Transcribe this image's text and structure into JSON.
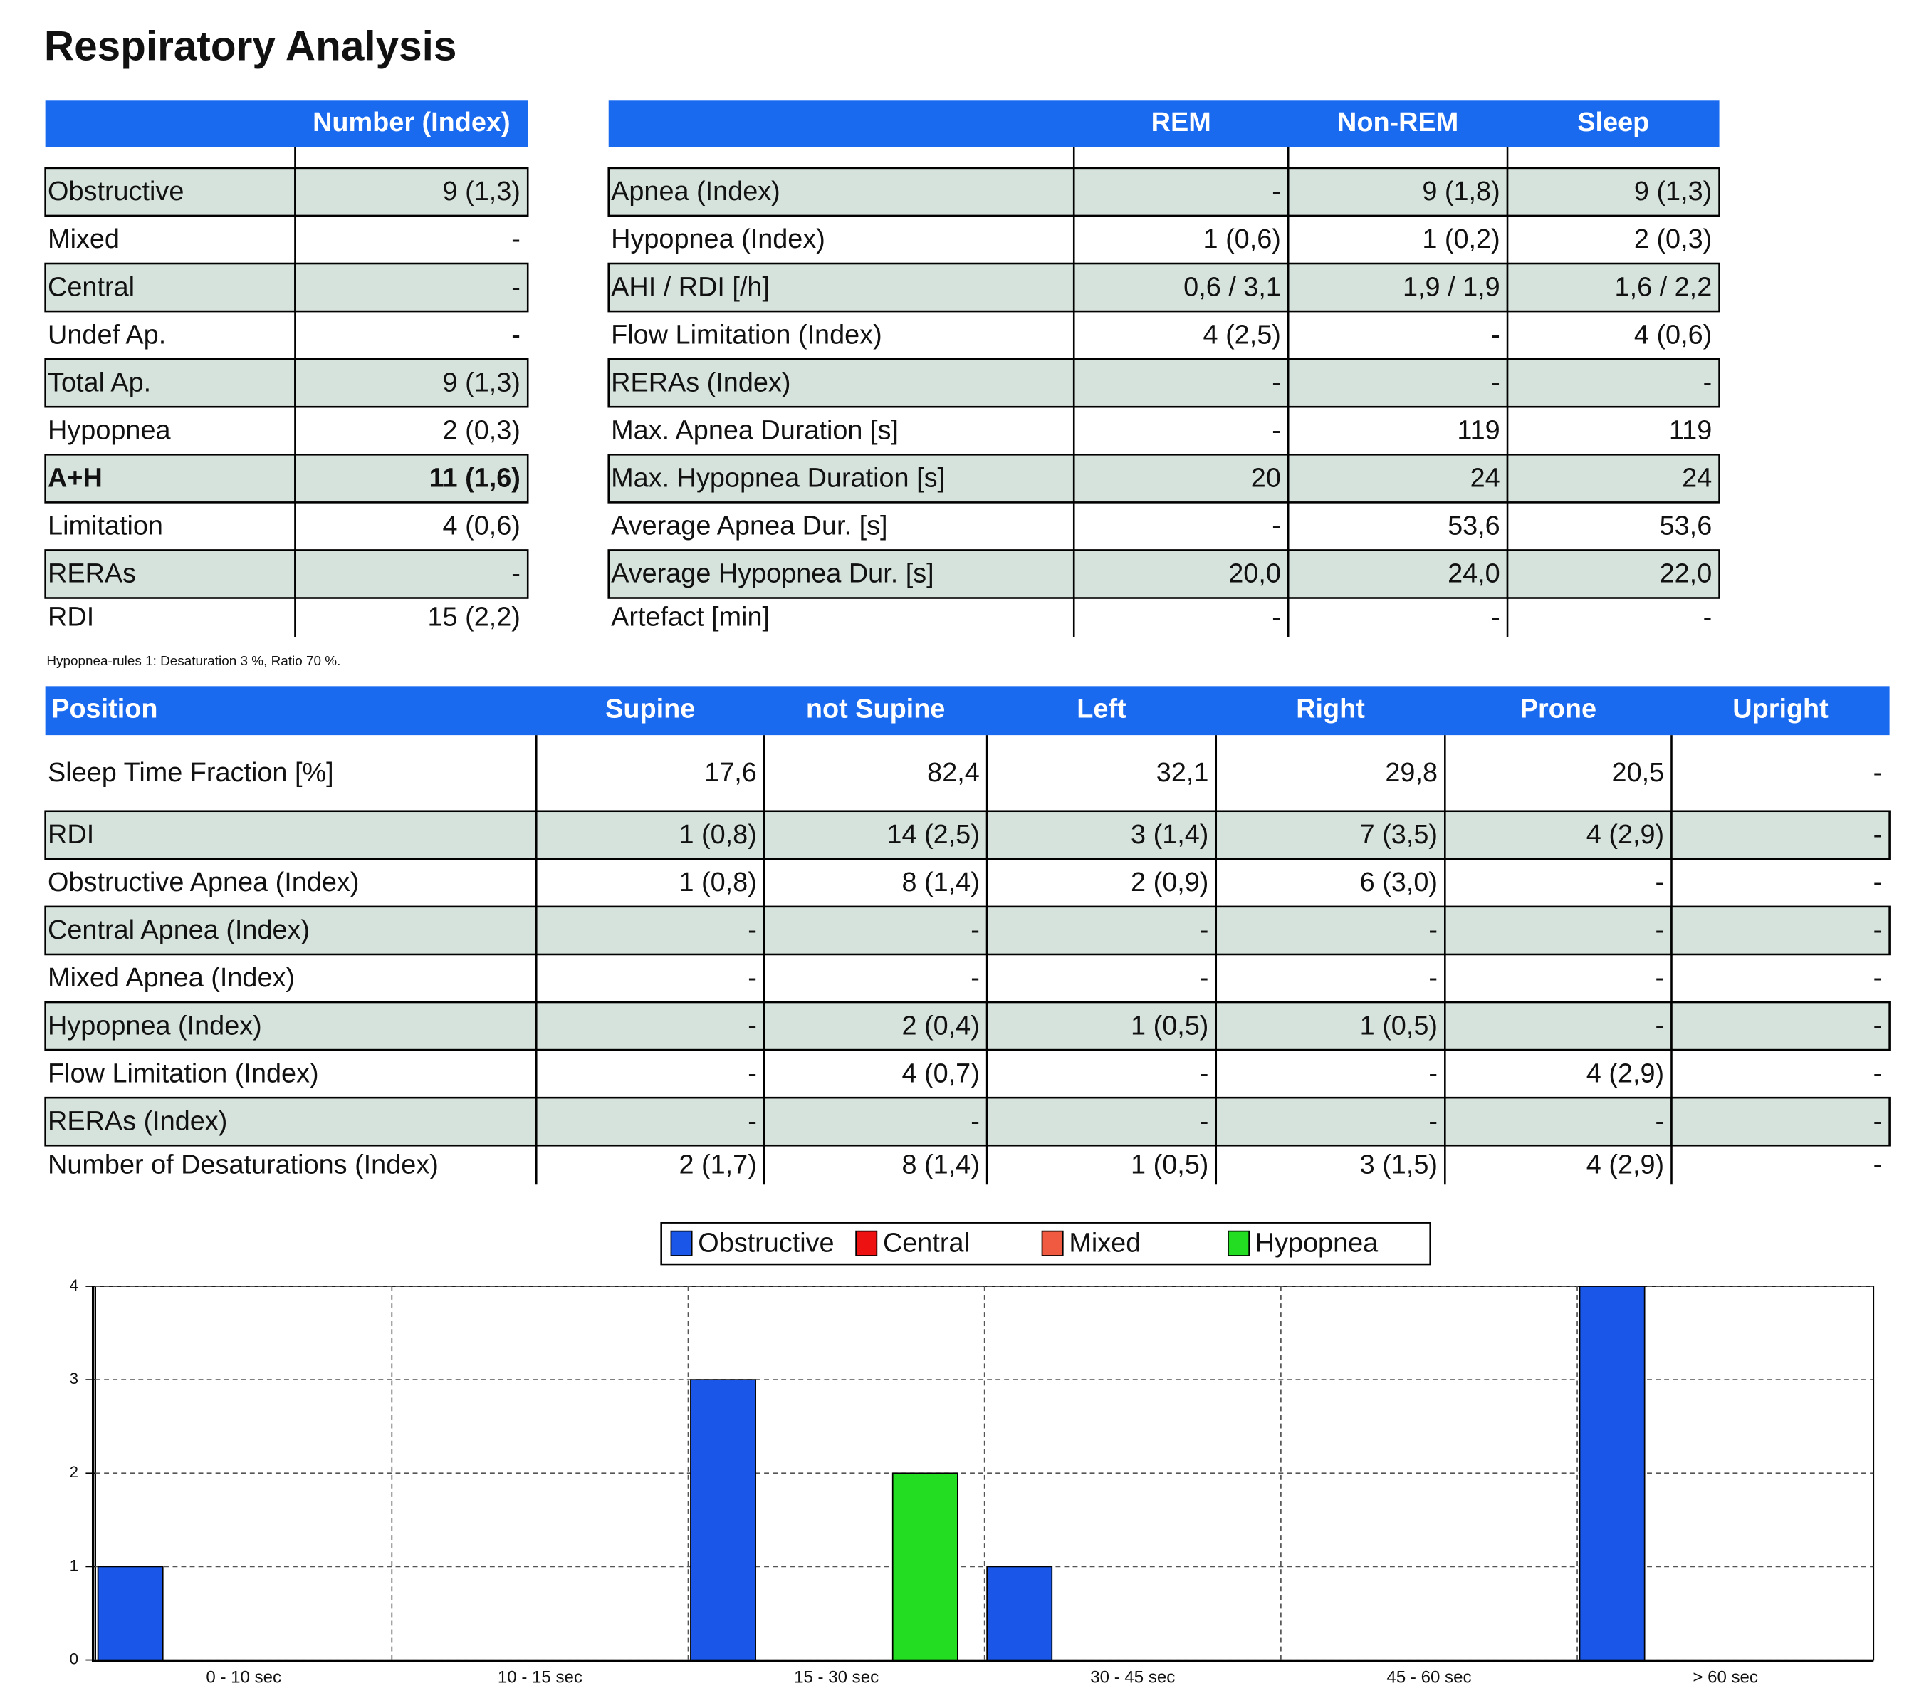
{
  "title": "Respiratory Analysis",
  "table1": {
    "header": [
      "",
      "Number (Index)"
    ],
    "rows": [
      [
        "Obstructive",
        "9 (1,3)"
      ],
      [
        "Mixed",
        "-"
      ],
      [
        "Central",
        "-"
      ],
      [
        "Undef Ap.",
        "-"
      ],
      [
        "Total Ap.",
        "9 (1,3)"
      ],
      [
        "Hypopnea",
        "2 (0,3)"
      ],
      [
        "A+H",
        "11 (1,6)"
      ],
      [
        "Limitation",
        "4 (0,6)"
      ],
      [
        "RERAs",
        "-"
      ],
      [
        "RDI",
        "15 (2,2)"
      ]
    ]
  },
  "table2": {
    "header": [
      "",
      "REM",
      "Non-REM",
      "Sleep"
    ],
    "rows": [
      [
        "Apnea (Index)",
        "-",
        "9 (1,8)",
        "9 (1,3)"
      ],
      [
        "Hypopnea (Index)",
        "1 (0,6)",
        "1 (0,2)",
        "2 (0,3)"
      ],
      [
        "AHI / RDI [/h]",
        "0,6 / 3,1",
        "1,9 / 1,9",
        "1,6 / 2,2"
      ],
      [
        "Flow Limitation (Index)",
        "4 (2,5)",
        "-",
        "4 (0,6)"
      ],
      [
        "RERAs (Index)",
        "-",
        "-",
        "-"
      ],
      [
        "Max. Apnea Duration [s]",
        "-",
        "119",
        "119"
      ],
      [
        "Max. Hypopnea Duration [s]",
        "20",
        "24",
        "24"
      ],
      [
        "Average Apnea Dur. [s]",
        "-",
        "53,6",
        "53,6"
      ],
      [
        "Average Hypopnea Dur. [s]",
        "20,0",
        "24,0",
        "22,0"
      ],
      [
        "Artefact [min]",
        "-",
        "-",
        "-"
      ]
    ]
  },
  "footnote": "Hypopnea-rules 1: Desaturation 3 %,  Ratio 70 %.",
  "table3": {
    "header": [
      "Position",
      "Supine",
      "not Supine",
      "Left",
      "Right",
      "Prone",
      "Upright"
    ],
    "rows": [
      [
        "Sleep Time Fraction [%]",
        "17,6",
        "82,4",
        "32,1",
        "29,8",
        "20,5",
        "-"
      ],
      [
        "RDI",
        "1 (0,8)",
        "14 (2,5)",
        "3 (1,4)",
        "7 (3,5)",
        "4 (2,9)",
        "-"
      ],
      [
        "Obstructive Apnea (Index)",
        "1 (0,8)",
        "8 (1,4)",
        "2 (0,9)",
        "6 (3,0)",
        "-",
        "-"
      ],
      [
        "Central Apnea (Index)",
        "-",
        "-",
        "-",
        "-",
        "-",
        "-"
      ],
      [
        "Mixed Apnea (Index)",
        "-",
        "-",
        "-",
        "-",
        "-",
        "-"
      ],
      [
        "Hypopnea (Index)",
        "-",
        "2 (0,4)",
        "1 (0,5)",
        "1 (0,5)",
        "-",
        "-"
      ],
      [
        "Flow Limitation (Index)",
        "-",
        "4 (0,7)",
        "-",
        "-",
        "4 (2,9)",
        "-"
      ],
      [
        "RERAs (Index)",
        "-",
        "-",
        "-",
        "-",
        "-",
        "-"
      ],
      [
        "Number of Desaturations (Index)",
        "2 (1,7)",
        "8 (1,4)",
        "1 (0,5)",
        "3 (1,5)",
        "4 (2,9)",
        "-"
      ]
    ]
  },
  "chart_data": {
    "type": "bar",
    "categories": [
      "0 - 10 sec",
      "10 - 15 sec",
      "15 - 30 sec",
      "30 - 45 sec",
      "45 - 60 sec",
      "> 60 sec"
    ],
    "series": [
      {
        "name": "Obstructive",
        "color": "#1a56e8",
        "values": [
          1,
          0,
          3,
          1,
          0,
          4
        ]
      },
      {
        "name": "Central",
        "color": "#ee1111",
        "values": [
          0,
          0,
          0,
          0,
          0,
          0
        ]
      },
      {
        "name": "Mixed",
        "color": "#f05a40",
        "values": [
          0,
          0,
          0,
          0,
          0,
          0
        ]
      },
      {
        "name": "Hypopnea",
        "color": "#22dd22",
        "values": [
          0,
          0,
          2,
          0,
          0,
          0
        ]
      }
    ],
    "ylim": [
      0,
      4
    ],
    "yticks": [
      0,
      1,
      2,
      3,
      4
    ],
    "grid": true,
    "legend": "top"
  }
}
